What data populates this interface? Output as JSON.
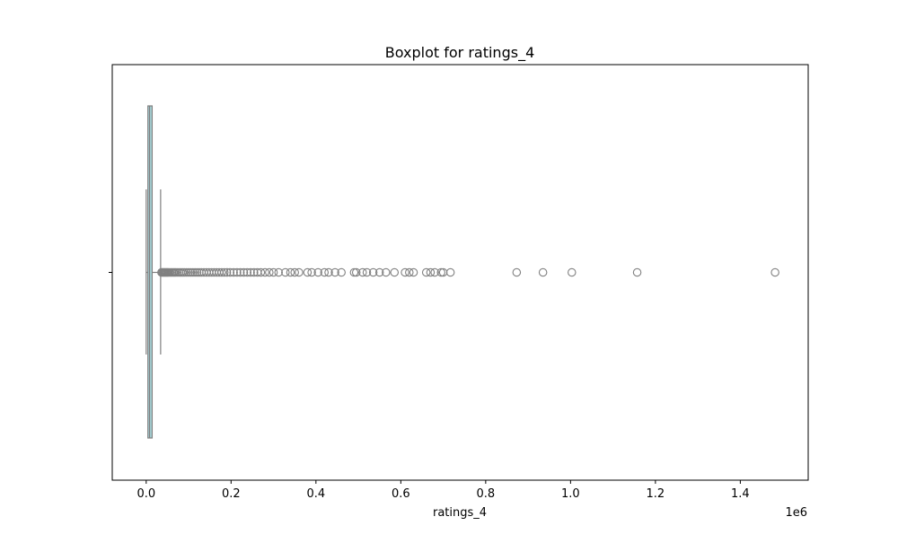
{
  "chart_data": {
    "type": "boxplot",
    "title": "Boxplot for ratings_4",
    "xlabel": "ratings_4",
    "ylabel": "",
    "x_offset_text": "1e6",
    "xlim": [
      -80000,
      1560000
    ],
    "xticks": [
      0,
      200000,
      400000,
      600000,
      800000,
      1000000,
      1200000,
      1400000
    ],
    "xtick_labels": [
      "0.0",
      "0.2",
      "0.4",
      "0.6",
      "0.8",
      "1.0",
      "1.2",
      "1.4"
    ],
    "grid": false,
    "box": {
      "min": 0,
      "q1": 4000,
      "median": 8000,
      "q3": 14000,
      "whisker_high": 34000,
      "box_color": "#a8d8dc",
      "line_color": "#808080"
    },
    "outliers": [
      36000,
      38000,
      40000,
      42000,
      44000,
      46000,
      48000,
      50000,
      52000,
      55000,
      58000,
      61000,
      64000,
      67000,
      70000,
      74000,
      78000,
      82000,
      86000,
      90000,
      95000,
      100000,
      105000,
      110000,
      115000,
      120000,
      125000,
      130000,
      136000,
      142000,
      148000,
      154000,
      160000,
      166000,
      172000,
      178000,
      184000,
      190000,
      198000,
      206000,
      214000,
      222000,
      230000,
      238000,
      246000,
      254000,
      262000,
      270000,
      280000,
      290000,
      300000,
      312000,
      328000,
      340000,
      350000,
      360000,
      380000,
      390000,
      405000,
      420000,
      430000,
      445000,
      460000,
      490000,
      495000,
      510000,
      520000,
      535000,
      550000,
      565000,
      585000,
      610000,
      620000,
      630000,
      660000,
      670000,
      680000,
      695000,
      700000,
      717000,
      873000,
      935000,
      1003000,
      1157000,
      1482000
    ]
  }
}
